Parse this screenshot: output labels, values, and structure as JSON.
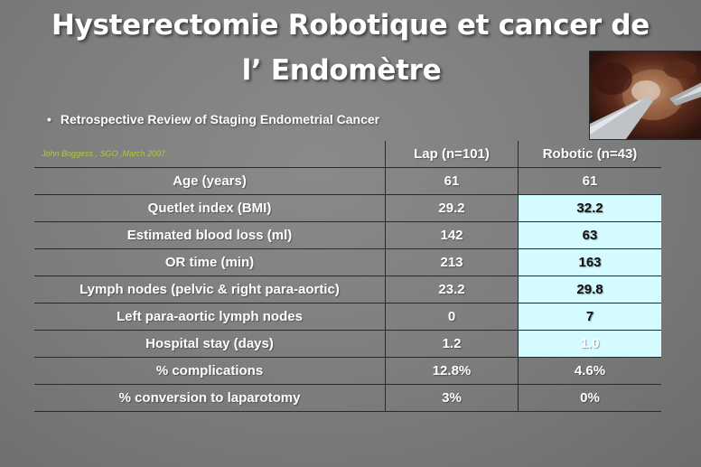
{
  "slide": {
    "title_line1": "Hysterectomie Robotique et cancer de",
    "title_line2": "l’ Endomètre",
    "bullet": "Retrospective Review of Staging Endometrial Cancer",
    "citation": "John Boggess , SGO ,March 2007.",
    "photo_icon": "surgical-robot-photo"
  },
  "table": {
    "headers": [
      "",
      "Lap (n=101)",
      "Robotic (n=43)"
    ],
    "rows": [
      {
        "label": "Age (years)",
        "lap": "61",
        "robotic": "61"
      },
      {
        "label": "Quetlet index (BMI)",
        "lap": "29.2",
        "robotic": "32.2"
      },
      {
        "label": "Estimated blood loss (ml)",
        "lap": "142",
        "robotic": "63"
      },
      {
        "label": "OR time (min)",
        "lap": "213",
        "robotic": "163"
      },
      {
        "label": "Lymph nodes (pelvic & right para-aortic)",
        "lap": "23.2",
        "robotic": "29.8"
      },
      {
        "label": "Left para-aortic lymph nodes",
        "lap": "0",
        "robotic": "7"
      },
      {
        "label": "Hospital stay (days)",
        "lap": "1.2",
        "robotic": "1.0"
      },
      {
        "label": "% complications",
        "lap": "12.8%",
        "robotic": "4.6%"
      },
      {
        "label": "% conversion to laparotomy",
        "lap": "3%",
        "robotic": "0%"
      }
    ],
    "highlight_color": "#d4fbff"
  }
}
